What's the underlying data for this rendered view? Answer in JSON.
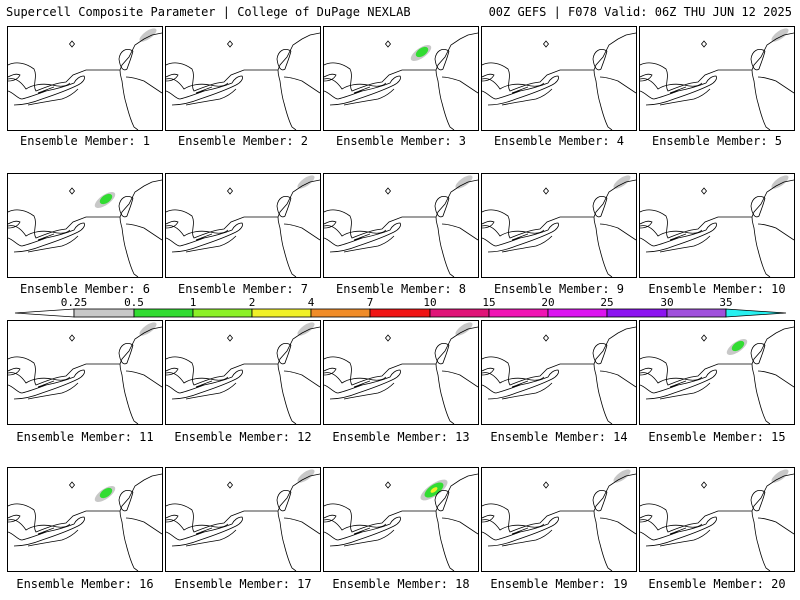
{
  "header": {
    "left": "Supercell Composite Parameter | College of DuPage NEXLAB",
    "right": "00Z GEFS | F078 Valid: 06Z THU JUN 12 2025"
  },
  "members": [
    {
      "label": "Ensemble Member: 1",
      "level": "trace"
    },
    {
      "label": "Ensemble Member: 2",
      "level": "none"
    },
    {
      "label": "Ensemble Member: 3",
      "level": "green"
    },
    {
      "label": "Ensemble Member: 4",
      "level": "none"
    },
    {
      "label": "Ensemble Member: 5",
      "level": "trace"
    },
    {
      "label": "Ensemble Member: 6",
      "level": "green"
    },
    {
      "label": "Ensemble Member: 7",
      "level": "trace"
    },
    {
      "label": "Ensemble Member: 8",
      "level": "trace"
    },
    {
      "label": "Ensemble Member: 9",
      "level": "trace"
    },
    {
      "label": "Ensemble Member: 10",
      "level": "trace"
    },
    {
      "label": "Ensemble Member: 11",
      "level": "trace"
    },
    {
      "label": "Ensemble Member: 12",
      "level": "trace"
    },
    {
      "label": "Ensemble Member: 13",
      "level": "trace"
    },
    {
      "label": "Ensemble Member: 14",
      "level": "none"
    },
    {
      "label": "Ensemble Member: 15",
      "level": "green"
    },
    {
      "label": "Ensemble Member: 16",
      "level": "green"
    },
    {
      "label": "Ensemble Member: 17",
      "level": "trace"
    },
    {
      "label": "Ensemble Member: 18",
      "level": "yellow"
    },
    {
      "label": "Ensemble Member: 19",
      "level": "trace"
    },
    {
      "label": "Ensemble Member: 20",
      "level": "trace"
    }
  ],
  "colorbar": {
    "labels": [
      "0.25",
      "0.5",
      "1",
      "2",
      "4",
      "7",
      "10",
      "15",
      "20",
      "25",
      "30",
      "35"
    ],
    "colors": [
      "#c8c8c8",
      "#32dc32",
      "#8cf028",
      "#f0f028",
      "#f08c28",
      "#f01414",
      "#e01478",
      "#f014b4",
      "#dc14f0",
      "#8c14f0",
      "#a050dc",
      "#28f0f0"
    ]
  }
}
